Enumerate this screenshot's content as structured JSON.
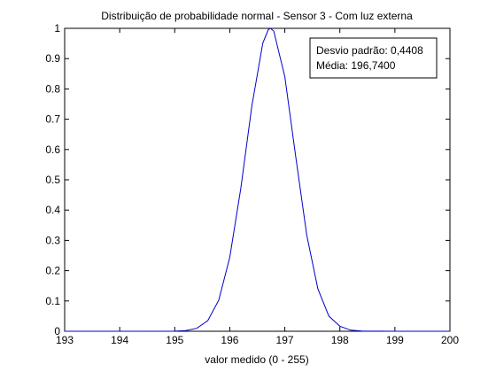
{
  "chart_data": {
    "type": "line",
    "title": "Distribuição de probabilidade normal - Sensor 3 - Com luz externa",
    "xlabel": "valor medido (0 - 255)",
    "ylabel": "",
    "xlim": [
      193,
      200
    ],
    "ylim": [
      0,
      1
    ],
    "x_ticks": [
      193,
      194,
      195,
      196,
      197,
      198,
      199,
      200
    ],
    "y_ticks": [
      0,
      0.1,
      0.2,
      0.3,
      0.4,
      0.5,
      0.6,
      0.7,
      0.8,
      0.9,
      1
    ],
    "x_tick_labels": [
      "193",
      "194",
      "195",
      "196",
      "197",
      "198",
      "199",
      "200"
    ],
    "y_tick_labels": [
      "0",
      "0.1",
      "0.2",
      "0.3",
      "0.4",
      "0.5",
      "0.6",
      "0.7",
      "0.8",
      "0.9",
      "1"
    ],
    "grid": false,
    "legend_placement": "top-right",
    "legend_lines": [
      "Desvio padrão: 0,4408",
      "Média: 196,7400"
    ],
    "series": [
      {
        "color": "#0000cc",
        "x": [
          193.0,
          194.0,
          195.0,
          195.2,
          195.4,
          195.6,
          195.8,
          196.0,
          196.2,
          196.4,
          196.6,
          196.7,
          196.74,
          196.8,
          197.0,
          197.2,
          197.4,
          197.6,
          197.8,
          198.0,
          198.2,
          198.4,
          199.0,
          200.0
        ],
        "y": [
          0.0,
          0.0,
          0.0004,
          0.0023,
          0.0097,
          0.035,
          0.103,
          0.244,
          0.472,
          0.743,
          0.951,
          0.996,
          1.0,
          0.991,
          0.84,
          0.574,
          0.316,
          0.14,
          0.05,
          0.0168,
          0.0035,
          0.0006,
          0.0,
          0.0
        ]
      }
    ]
  }
}
